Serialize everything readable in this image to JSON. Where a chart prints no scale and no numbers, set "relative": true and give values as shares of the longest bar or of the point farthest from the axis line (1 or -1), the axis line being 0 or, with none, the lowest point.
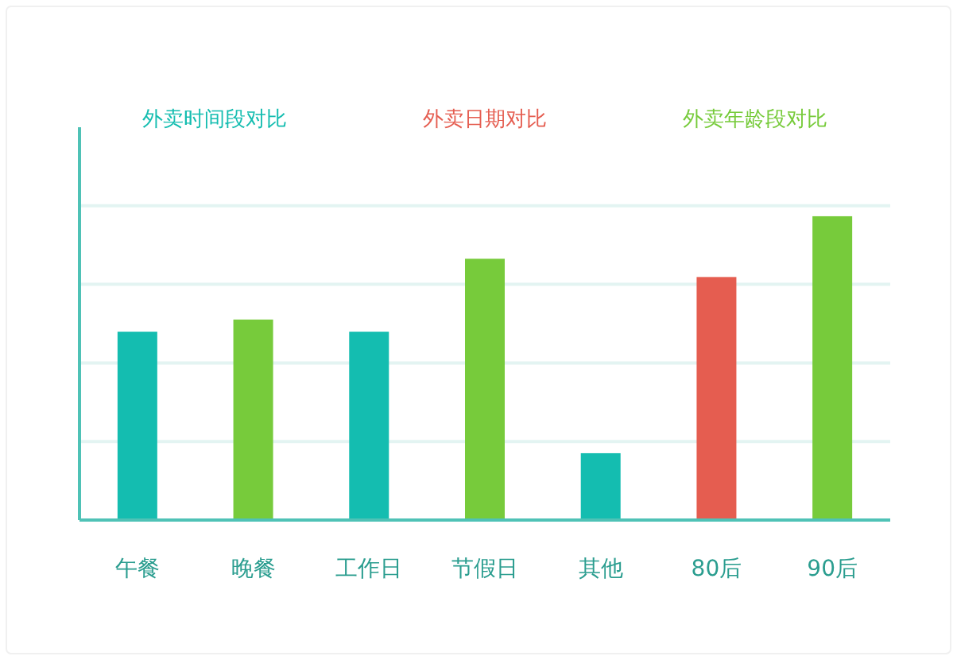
{
  "chart_data": {
    "type": "bar",
    "relative": true,
    "grid": "y",
    "categories": [
      "午餐",
      "晚餐",
      "工作日",
      "节假日",
      "其他",
      "80后",
      "90后"
    ],
    "values": [
      0.62,
      0.66,
      0.62,
      0.86,
      0.22,
      0.8,
      1
    ],
    "colors": [
      "#14bdb0",
      "#77cb3b",
      "#14bdb0",
      "#77cb3b",
      "#14bdb0",
      "#e55d50",
      "#77cb3b"
    ],
    "annotations": [
      "外卖时间段对比",
      "外卖日期对比",
      "外卖年龄段对比"
    ]
  }
}
